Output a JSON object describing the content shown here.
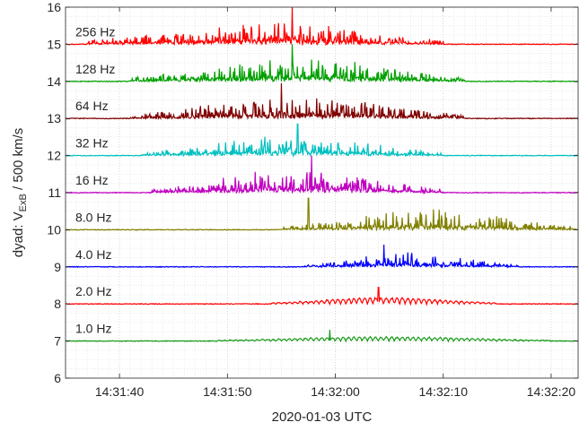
{
  "chart_data": {
    "type": "line",
    "title": "",
    "xlabel": "2020-01-03 UTC",
    "ylabel": {
      "prefix": "dyad:   V",
      "subscript": "ExB",
      "suffix": " / 500 km/s"
    },
    "xlim": [
      "14:31:35",
      "14:32:22.5"
    ],
    "ylim": [
      6,
      16
    ],
    "x_ticks": [
      {
        "t": "14:31:40",
        "label": "14:31:40"
      },
      {
        "t": "14:31:50",
        "label": "14:31:50"
      },
      {
        "t": "14:32:00",
        "label": "14:32:00"
      },
      {
        "t": "14:32:10",
        "label": "14:32:10"
      },
      {
        "t": "14:32:20",
        "label": "14:32:20"
      }
    ],
    "y_ticks": [
      6,
      7,
      8,
      9,
      10,
      11,
      12,
      13,
      14,
      15,
      16
    ],
    "grid": "dotted, minor x every 1 s, minor y every 0.25",
    "series": [
      {
        "label": "1.0 Hz",
        "color": "#1a9a1a",
        "baseline": 7,
        "burst_start": "14:31:49",
        "burst_end": "14:32:20",
        "peak_time": "14:31:59.5",
        "peak_value": 7.3,
        "spiky": false
      },
      {
        "label": "2.0 Hz",
        "color": "#ff0000",
        "baseline": 8,
        "burst_start": "14:31:54",
        "burst_end": "14:32:15",
        "peak_time": "14:32:04",
        "peak_value": 8.45,
        "spiky": false
      },
      {
        "label": "4.0 Hz",
        "color": "#0000ff",
        "baseline": 9,
        "burst_start": "14:31:57",
        "burst_end": "14:32:17",
        "peak_time": "14:32:04.5",
        "peak_value": 9.6,
        "spiky": true
      },
      {
        "label": "8.0 Hz",
        "color": "#808000",
        "baseline": 10,
        "burst_start": "14:31:55",
        "burst_end": "14:32:22.5",
        "peak_time": "14:31:57.5",
        "peak_value": 10.85,
        "spiky": true
      },
      {
        "label": "16 Hz",
        "color": "#c000c0",
        "baseline": 11,
        "burst_start": "14:31:43",
        "burst_end": "14:32:10",
        "peak_time": "14:31:57.8",
        "peak_value": 12.0,
        "spiky": true
      },
      {
        "label": "32 Hz",
        "color": "#00c0c0",
        "baseline": 12,
        "burst_start": "14:31:42",
        "burst_end": "14:32:10",
        "peak_time": "14:31:56.5",
        "peak_value": 12.85,
        "spiky": true
      },
      {
        "label": "64 Hz",
        "color": "#800000",
        "baseline": 13,
        "burst_start": "14:31:41",
        "burst_end": "14:32:12",
        "peak_time": "14:31:55",
        "peak_value": 13.95,
        "spiky": true
      },
      {
        "label": "128 Hz",
        "color": "#00a000",
        "baseline": 14,
        "burst_start": "14:31:41",
        "burst_end": "14:32:12",
        "peak_time": "14:31:56",
        "peak_value": 15.0,
        "spiky": true
      },
      {
        "label": "256 Hz",
        "color": "#ff0000",
        "baseline": 15,
        "burst_start": "14:31:37",
        "burst_end": "14:32:10",
        "peak_time": "14:31:56",
        "peak_value": 16.0,
        "spiky": true
      }
    ]
  }
}
